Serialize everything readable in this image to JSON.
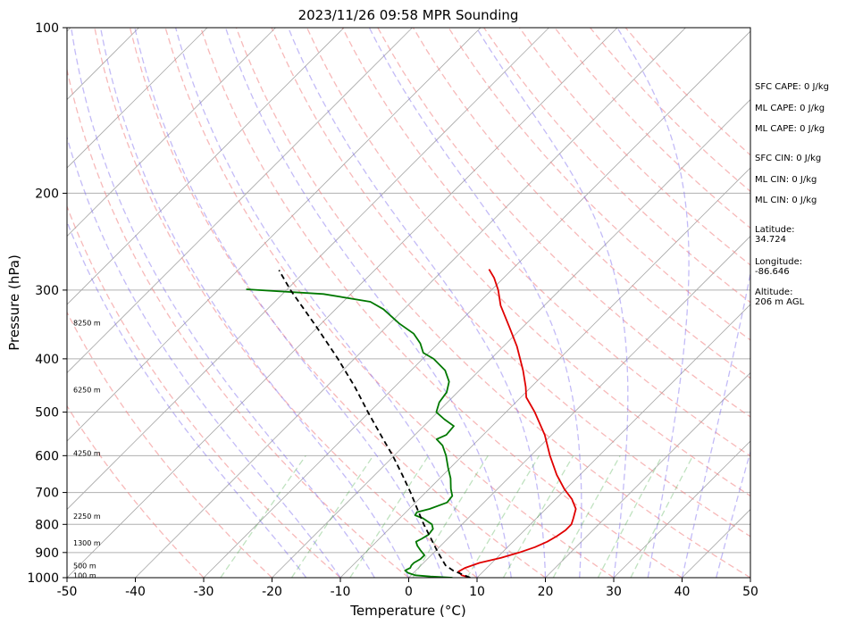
{
  "chart_data": {
    "type": "line",
    "subtype": "skew-t log-p",
    "title": "2023/11/26 09:58 MPR Sounding",
    "xlabel": "Temperature (°C)",
    "ylabel": "Pressure (hPa)",
    "xlim": [
      -50,
      50
    ],
    "ylim": [
      1000,
      100
    ],
    "yscale": "log",
    "skew_deg": 45,
    "grid": true,
    "x_ticks": [
      -50,
      -40,
      -30,
      -20,
      -10,
      0,
      10,
      20,
      30,
      40,
      50
    ],
    "y_ticks": [
      100,
      200,
      300,
      400,
      500,
      600,
      700,
      800,
      900,
      1000
    ],
    "series": [
      {
        "color": "#e00000",
        "points": [
          {
            "p": 1000,
            "t": 9.0
          },
          {
            "p": 990,
            "t": 7.4
          },
          {
            "p": 975,
            "t": 6.4
          },
          {
            "p": 960,
            "t": 6.8
          },
          {
            "p": 940,
            "t": 8.2
          },
          {
            "p": 920,
            "t": 10.6
          },
          {
            "p": 900,
            "t": 12.5
          },
          {
            "p": 880,
            "t": 14.0
          },
          {
            "p": 860,
            "t": 15.0
          },
          {
            "p": 840,
            "t": 15.6
          },
          {
            "p": 820,
            "t": 16.0
          },
          {
            "p": 800,
            "t": 16.0
          },
          {
            "p": 780,
            "t": 15.4
          },
          {
            "p": 750,
            "t": 14.4
          },
          {
            "p": 720,
            "t": 12.4
          },
          {
            "p": 690,
            "t": 9.8
          },
          {
            "p": 650,
            "t": 6.6
          },
          {
            "p": 600,
            "t": 2.8
          },
          {
            "p": 550,
            "t": -1.0
          },
          {
            "p": 500,
            "t": -5.8
          },
          {
            "p": 470,
            "t": -9.2
          },
          {
            "p": 450,
            "t": -10.8
          },
          {
            "p": 420,
            "t": -13.6
          },
          {
            "p": 380,
            "t": -18.0
          },
          {
            "p": 350,
            "t": -22.0
          },
          {
            "p": 320,
            "t": -26.4
          },
          {
            "p": 300,
            "t": -29.0
          },
          {
            "p": 285,
            "t": -31.4
          },
          {
            "p": 275,
            "t": -33.4
          }
        ]
      },
      {
        "color": "#007800",
        "points": [
          {
            "p": 1000,
            "t": 6.4
          },
          {
            "p": 995,
            "t": 3.0
          },
          {
            "p": 990,
            "t": 0.6
          },
          {
            "p": 980,
            "t": -0.8
          },
          {
            "p": 970,
            "t": -1.6
          },
          {
            "p": 960,
            "t": -1.2
          },
          {
            "p": 950,
            "t": -1.4
          },
          {
            "p": 940,
            "t": -1.4
          },
          {
            "p": 925,
            "t": -1.0
          },
          {
            "p": 910,
            "t": -1.0
          },
          {
            "p": 890,
            "t": -2.4
          },
          {
            "p": 875,
            "t": -3.4
          },
          {
            "p": 860,
            "t": -4.2
          },
          {
            "p": 850,
            "t": -3.8
          },
          {
            "p": 835,
            "t": -3.4
          },
          {
            "p": 815,
            "t": -3.6
          },
          {
            "p": 800,
            "t": -4.4
          },
          {
            "p": 780,
            "t": -6.6
          },
          {
            "p": 770,
            "t": -8.2
          },
          {
            "p": 760,
            "t": -8.4
          },
          {
            "p": 750,
            "t": -7.0
          },
          {
            "p": 730,
            "t": -5.4
          },
          {
            "p": 710,
            "t": -5.6
          },
          {
            "p": 690,
            "t": -6.8
          },
          {
            "p": 660,
            "t": -8.4
          },
          {
            "p": 630,
            "t": -10.4
          },
          {
            "p": 600,
            "t": -12.4
          },
          {
            "p": 575,
            "t": -14.4
          },
          {
            "p": 560,
            "t": -16.2
          },
          {
            "p": 550,
            "t": -15.4
          },
          {
            "p": 530,
            "t": -15.6
          },
          {
            "p": 515,
            "t": -18.0
          },
          {
            "p": 500,
            "t": -20.2
          },
          {
            "p": 480,
            "t": -21.2
          },
          {
            "p": 460,
            "t": -21.6
          },
          {
            "p": 440,
            "t": -22.8
          },
          {
            "p": 420,
            "t": -25.0
          },
          {
            "p": 400,
            "t": -28.4
          },
          {
            "p": 390,
            "t": -30.8
          },
          {
            "p": 375,
            "t": -32.6
          },
          {
            "p": 360,
            "t": -35.0
          },
          {
            "p": 345,
            "t": -38.6
          },
          {
            "p": 325,
            "t": -43.0
          },
          {
            "p": 315,
            "t": -46.0
          },
          {
            "p": 305,
            "t": -54.0
          },
          {
            "p": 299,
            "t": -66.0
          }
        ]
      },
      {
        "color": "#000000",
        "dashed": true,
        "points": [
          {
            "p": 1000,
            "t": 9.0
          },
          {
            "p": 970,
            "t": 5.4
          },
          {
            "p": 950,
            "t": 3.6
          },
          {
            "p": 900,
            "t": 0.6
          },
          {
            "p": 850,
            "t": -2.4
          },
          {
            "p": 800,
            "t": -5.6
          },
          {
            "p": 750,
            "t": -8.8
          },
          {
            "p": 700,
            "t": -12.2
          },
          {
            "p": 650,
            "t": -16.0
          },
          {
            "p": 600,
            "t": -20.2
          },
          {
            "p": 550,
            "t": -25.0
          },
          {
            "p": 500,
            "t": -30.2
          },
          {
            "p": 450,
            "t": -35.8
          },
          {
            "p": 400,
            "t": -42.4
          },
          {
            "p": 350,
            "t": -50.2
          },
          {
            "p": 300,
            "t": -59.4
          },
          {
            "p": 276,
            "t": -64.0
          }
        ]
      }
    ],
    "height_labels": [
      {
        "text": "100 m",
        "p": 990
      },
      {
        "text": "500 m",
        "p": 950
      },
      {
        "text": "1300 m",
        "p": 864
      },
      {
        "text": "2250 m",
        "p": 773
      },
      {
        "text": "4250 m",
        "p": 594
      },
      {
        "text": "6250 m",
        "p": 455
      },
      {
        "text": "8250 m",
        "p": 344
      }
    ],
    "dry_adiabats_theta_c": [
      -30,
      -20,
      -10,
      0,
      10,
      20,
      30,
      40,
      50,
      60,
      70,
      80,
      90,
      100,
      110,
      120,
      130,
      140,
      150,
      160
    ],
    "moist_adiabats_start_c": [
      -15,
      -10,
      -5,
      0,
      5,
      10,
      15,
      20,
      25,
      30,
      35,
      40,
      45
    ],
    "mixing_ratio_gkg": [
      0.4,
      1,
      2,
      4,
      7,
      10,
      16,
      24,
      32
    ]
  },
  "side_panel": {
    "sfc_cape": "SFC CAPE: 0 J/kg",
    "ml_cape": "ML CAPE: 0 J/kg",
    "ml_cape_2": "ML CAPE: 0 J/kg",
    "sfc_cin": "SFC CIN: 0 J/kg",
    "ml_cin": "ML CIN: 0 J/kg",
    "ml_cin_2": "ML CIN: 0 J/kg",
    "latitude_label": "Latitude:",
    "latitude_value": "34.724",
    "longitude_label": "Longitude:",
    "longitude_value": "-86.646",
    "altitude_label": "Altitude:",
    "altitude_value": "206 m AGL"
  }
}
